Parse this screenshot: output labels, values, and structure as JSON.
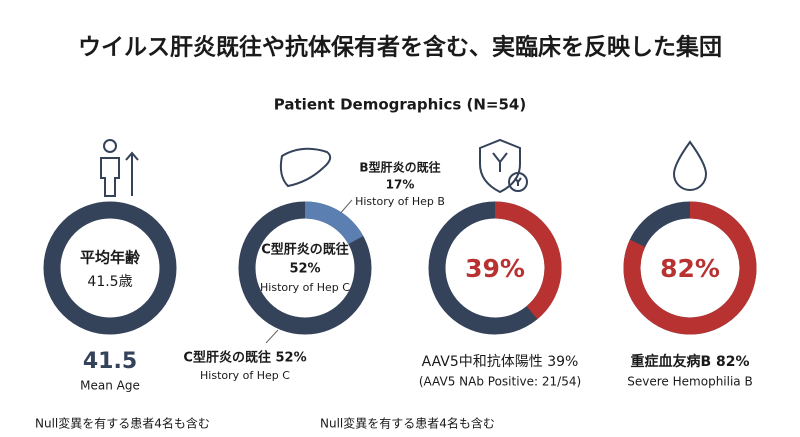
{
  "title": "ウイルス肝炎既往や抗体保有者を含む、実臨床を反映した集団",
  "subtitle": "Patient Demographics (N=54)",
  "panels": [
    {
      "center_title": "平均年齢",
      "center_value": "41.5歳",
      "big_value": "41.5",
      "caption": "Mean Age"
    },
    {
      "center_title": "C型肝炎の既往",
      "center_value": "52%",
      "center_caption": "History of Hep C",
      "segment": {
        "name": "B型肝炎の既往",
        "value": 17,
        "value_label": "17%",
        "caption": "History of Hep B",
        "color": "#5b7fb0"
      },
      "bottom_label": "C型肝炎の既往 52%",
      "bottom_caption": "History of Hep C"
    },
    {
      "value": 39,
      "value_label": "39%",
      "color": "#b83232",
      "label": "AAV5中和抗体陽性 39%",
      "caption": "(AAV5 NAb Positive: 21/54)"
    },
    {
      "value": 82,
      "value_label": "82%",
      "color": "#b83232",
      "label": "重症血友病B 82%",
      "caption": "Severe Hemophilia B"
    }
  ],
  "footnotes": [
    "Null変異を有する患者4名も含む",
    "Null変異を有する患者4名も含む"
  ]
}
